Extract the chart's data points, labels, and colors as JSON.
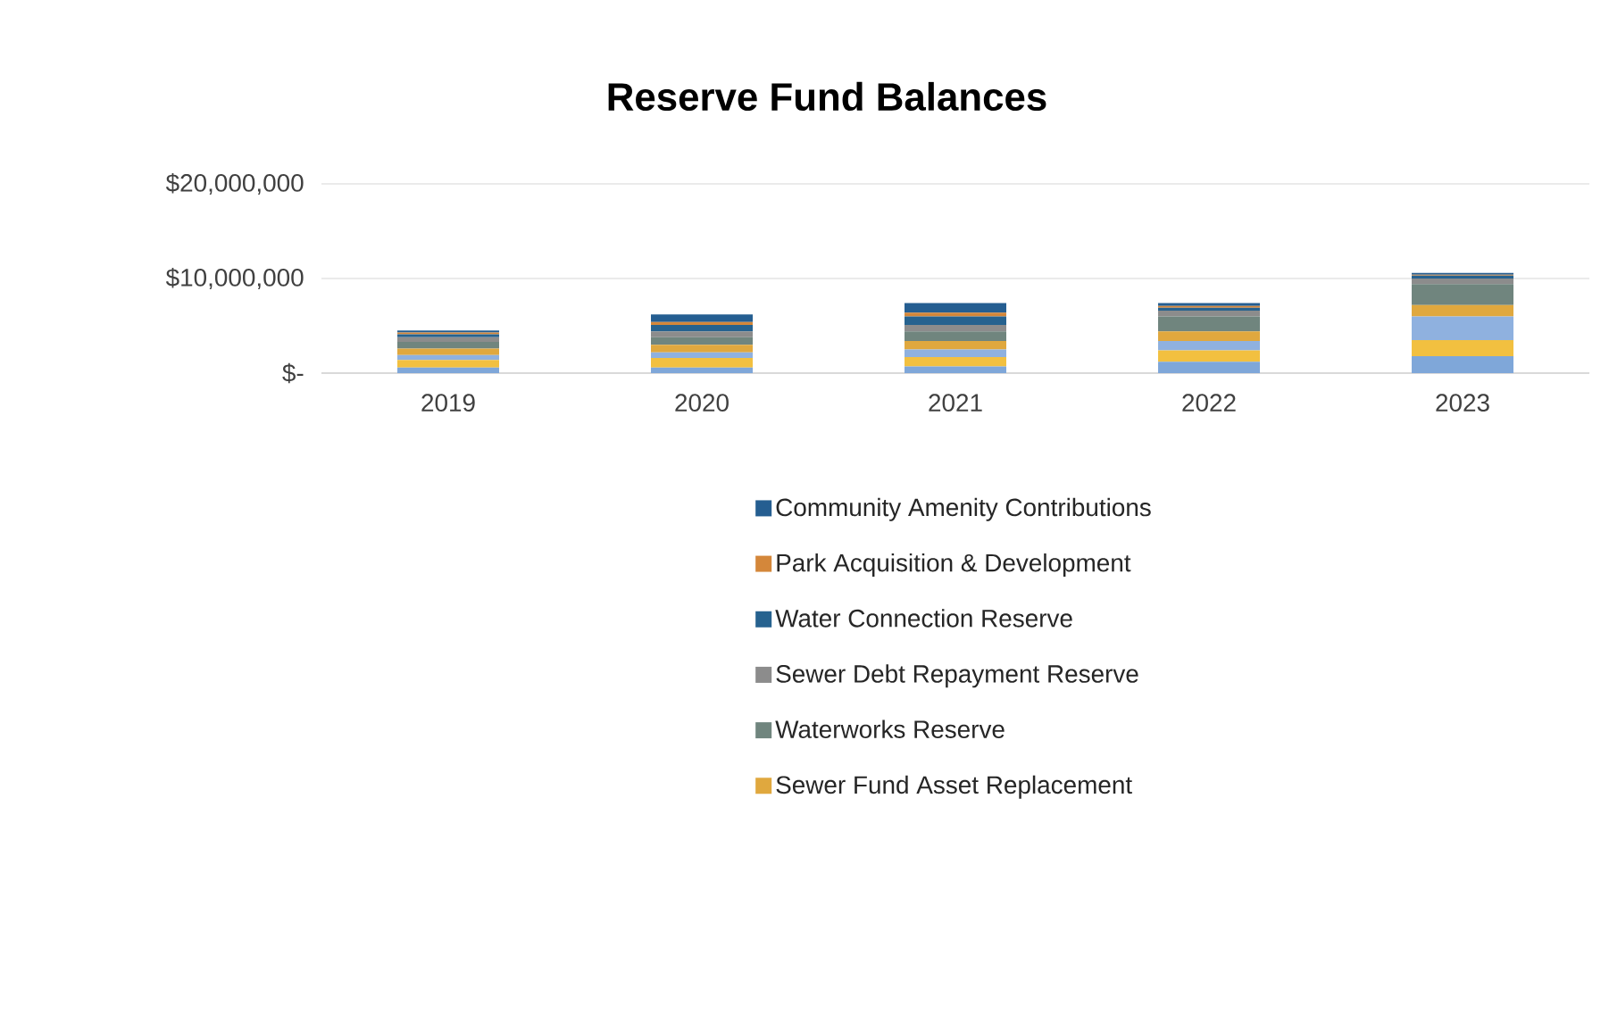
{
  "chart_data": {
    "type": "bar",
    "title": "Reserve Fund Balances",
    "stacked": true,
    "categories": [
      "2019",
      "2020",
      "2021",
      "2022",
      "2023"
    ],
    "ylim": [
      0,
      20000000
    ],
    "yticks": [
      {
        "value": 0,
        "label": "$-"
      },
      {
        "value": 10000000,
        "label": "$10,000,000"
      },
      {
        "value": 20000000,
        "label": "$20,000,000"
      }
    ],
    "grid": "y",
    "legend": "bottom",
    "series": [
      {
        "color": "#7fa7d9",
        "values": [
          600000,
          600000,
          700000,
          1200000,
          1800000
        ]
      },
      {
        "color": "#f2c040",
        "values": [
          800000,
          1000000,
          1000000,
          1200000,
          1700000
        ]
      },
      {
        "color": "#8fb1df",
        "values": [
          500000,
          600000,
          800000,
          1000000,
          2500000
        ]
      },
      {
        "name": "Sewer Fund Asset Replacement",
        "color": "#e0a83e",
        "values": [
          700000,
          800000,
          900000,
          1000000,
          1200000
        ]
      },
      {
        "name": "Waterworks Reserve",
        "color": "#70857e",
        "values": [
          700000,
          800000,
          1000000,
          1600000,
          2200000
        ]
      },
      {
        "name": "Sewer Debt Repayment Reserve",
        "color": "#8c8c8c",
        "values": [
          500000,
          600000,
          700000,
          600000,
          600000
        ]
      },
      {
        "name": "Water Connection Reserve",
        "color": "#26628f",
        "values": [
          300000,
          700000,
          900000,
          300000,
          300000
        ]
      },
      {
        "name": "Park Acquisition & Development",
        "color": "#d4873a",
        "values": [
          200000,
          300000,
          400000,
          200000,
          100000
        ]
      },
      {
        "name": "Community Amenity Contributions",
        "color": "#255e91",
        "values": [
          200000,
          800000,
          1000000,
          300000,
          200000
        ]
      }
    ]
  }
}
